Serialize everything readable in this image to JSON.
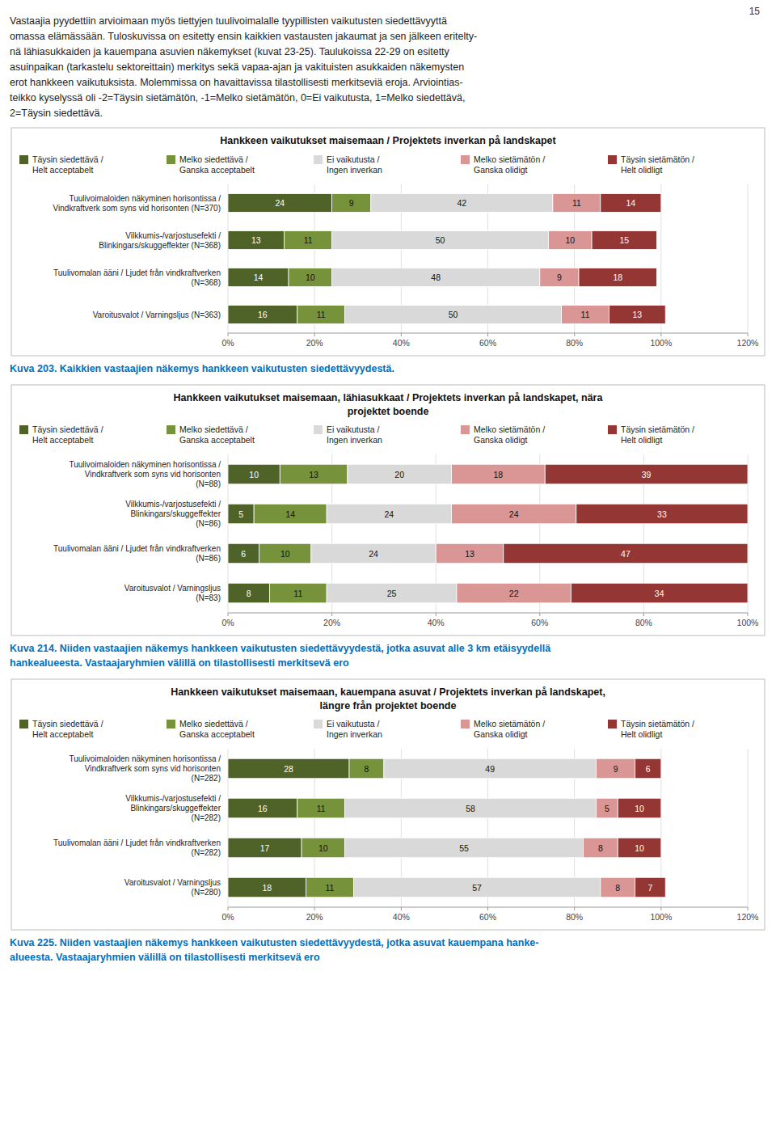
{
  "page": "15",
  "annotations": [
    "Vastaajia pyydettiin arvioimaan myös tiettyjen tuulivoimalalle tyypillisten vaikutusten siedettävyyttä",
    "omassa elämässään. Tuloskuvissa on esitetty ensin kaikkien vastausten jakaumat ja sen jälkeen eritelty-",
    "nä lähiasukkaiden ja kauempana asuvien näkemykset (kuvat 23-25). Taulukoissa 22-29 on esitetty",
    "asuinpaikan (tarkastelu sektoreittain) merkitys sekä vapaa-ajan ja vakituisten asukkaiden näkemysten",
    "erot hankkeen vaikutuksista. Molemmissa on havaittavissa tilastollisesti merkitseviä eroja. Arviointias-",
    "teikko kyselyssä oli -2=Täysin sietämätön, -1=Melko sietämätön, 0=Ei vaikutusta, 1=Melko siedettävä,",
    "2=Täysin siedettävä."
  ],
  "chart_data": [
    {
      "type": "bar",
      "orientation": "horizontal",
      "stacked": true,
      "data_labels": true,
      "grid": true,
      "legend": "top",
      "title": "Hankkeen vaikutukset maisemaan / Projektets inverkan på landskapet",
      "categories": [
        "Tuulivoimaloiden näkyminen horisontissa /\nVindkraftverk som syns vid horisonten (N=370)",
        "Vilkkumis-/varjostusefekti /\nBlinkingars/skuggeffekter (N=368)",
        "Tuulivomalan ääni / Ljudet från vindkraftverken\n(N=368)",
        "Varoitusvalot / Varningsljus (N=363)"
      ],
      "series": [
        {
          "name": "Täysin siedettävä /\nHelt acceptabelt",
          "color": "#4f6228",
          "values": [
            24,
            13,
            14,
            16
          ]
        },
        {
          "name": "Melko siedettävä /\nGanska acceptabelt",
          "color": "#76933c",
          "values": [
            9,
            11,
            10,
            11
          ]
        },
        {
          "name": "Ei vaikutusta /\nIngen inverkan",
          "color": "#d9d9d9",
          "values": [
            42,
            50,
            48,
            50
          ]
        },
        {
          "name": "Melko sietämätön /\nGanska olidigt",
          "color": "#da9694",
          "values": [
            11,
            10,
            9,
            11
          ]
        },
        {
          "name": "Täysin sietämätön /\nHelt olidligt",
          "color": "#943634",
          "values": [
            14,
            15,
            18,
            13
          ]
        }
      ],
      "xlim": [
        0,
        120
      ],
      "xticks": [
        {
          "value": 0,
          "label": "0%"
        },
        {
          "value": 20,
          "label": "20%"
        },
        {
          "value": 40,
          "label": "40%"
        },
        {
          "value": 60,
          "label": "60%"
        },
        {
          "value": 80,
          "label": "80%"
        },
        {
          "value": 100,
          "label": "100%"
        },
        {
          "value": 120,
          "label": "120%"
        }
      ],
      "annotations": [
        "Kuva 203. Kaikkien vastaajien näkemys hankkeen vaikutusten siedettävyydestä."
      ]
    },
    {
      "type": "bar",
      "orientation": "horizontal",
      "stacked": true,
      "data_labels": true,
      "grid": true,
      "legend": "top",
      "title": "Hankkeen vaikutukset maisemaan, lähiasukkaat / Projektets inverkan på landskapet, nära",
      "subtitle": "projektet boende",
      "categories": [
        "Tuulivoimaloiden näkyminen horisontissa /\nVindkraftverk som syns vid horisonten\n(N=88)",
        "Vilkkumis-/varjostusefekti /\nBlinkingars/skuggeffekter\n(N=86)",
        "Tuulivomalan ääni / Ljudet från vindkraftverken\n(N=86)",
        "Varoitusvalot / Varningsljus\n(N=83)"
      ],
      "series": [
        {
          "name": "Täysin siedettävä /\nHelt acceptabelt",
          "color": "#4f6228",
          "values": [
            10,
            5,
            6,
            8
          ]
        },
        {
          "name": "Melko siedettävä /\nGanska acceptabelt",
          "color": "#76933c",
          "values": [
            13,
            14,
            10,
            11
          ]
        },
        {
          "name": "Ei vaikutusta /\nIngen inverkan",
          "color": "#d9d9d9",
          "values": [
            20,
            24,
            24,
            25
          ]
        },
        {
          "name": "Melko sietämätön /\nGanska olidigt",
          "color": "#da9694",
          "values": [
            18,
            24,
            13,
            22
          ]
        },
        {
          "name": "Täysin sietämätön /\nHelt olidligt",
          "color": "#943634",
          "values": [
            39,
            33,
            47,
            34
          ]
        }
      ],
      "xlim": [
        0,
        100
      ],
      "xticks": [
        {
          "value": 0,
          "label": "0%"
        },
        {
          "value": 20,
          "label": "20%"
        },
        {
          "value": 40,
          "label": "40%"
        },
        {
          "value": 60,
          "label": "60%"
        },
        {
          "value": 80,
          "label": "80%"
        },
        {
          "value": 100,
          "label": "100%"
        }
      ],
      "annotations": [
        "Kuva 214. Niiden vastaajien näkemys hankkeen vaikutusten siedettävyydestä, jotka asuvat alle 3 km etäisyydellä",
        "hankealueesta. Vastaajaryhmien välillä on tilastollisesti merkitsevä ero"
      ]
    },
    {
      "type": "bar",
      "orientation": "horizontal",
      "stacked": true,
      "data_labels": true,
      "grid": true,
      "legend": "top",
      "title": "Hankkeen vaikutukset maisemaan, kauempana asuvat / Projektets inverkan på landskapet,",
      "subtitle": "längre från projektet boende",
      "categories": [
        "Tuulivoimaloiden näkyminen horisontissa /\nVindkraftverk som syns vid horisonten\n(N=282)",
        "Vilkkumis-/varjostusefekti /\nBlinkingars/skuggeffekter\n(N=282)",
        "Tuulivomalan ääni / Ljudet från vindkraftverken\n(N=282)",
        "Varoitusvalot / Varningsljus\n(N=280)"
      ],
      "series": [
        {
          "name": "Täysin siedettävä /\nHelt acceptabelt",
          "color": "#4f6228",
          "values": [
            28,
            16,
            17,
            18
          ]
        },
        {
          "name": "Melko siedettävä /\nGanska acceptabelt",
          "color": "#76933c",
          "values": [
            8,
            11,
            10,
            11
          ]
        },
        {
          "name": "Ei vaikutusta /\nIngen inverkan",
          "color": "#d9d9d9",
          "values": [
            49,
            58,
            55,
            57
          ]
        },
        {
          "name": "Melko sietämätön /\nGanska olidigt",
          "color": "#da9694",
          "values": [
            9,
            5,
            8,
            8
          ]
        },
        {
          "name": "Täysin sietämätön /\nHelt olidligt",
          "color": "#943634",
          "values": [
            6,
            10,
            10,
            7
          ]
        }
      ],
      "xlim": [
        0,
        120
      ],
      "xticks": [
        {
          "value": 0,
          "label": "0%"
        },
        {
          "value": 20,
          "label": "20%"
        },
        {
          "value": 40,
          "label": "40%"
        },
        {
          "value": 60,
          "label": "60%"
        },
        {
          "value": 80,
          "label": "80%"
        },
        {
          "value": 100,
          "label": "100%"
        },
        {
          "value": 120,
          "label": "120%"
        }
      ],
      "annotations": [
        "Kuva 225. Niiden vastaajien näkemys hankkeen vaikutusten siedettävyydestä, jotka asuvat kauempana hanke-",
        "alueesta. Vastaajaryhmien välillä on tilastollisesti merkitsevä ero"
      ]
    }
  ]
}
